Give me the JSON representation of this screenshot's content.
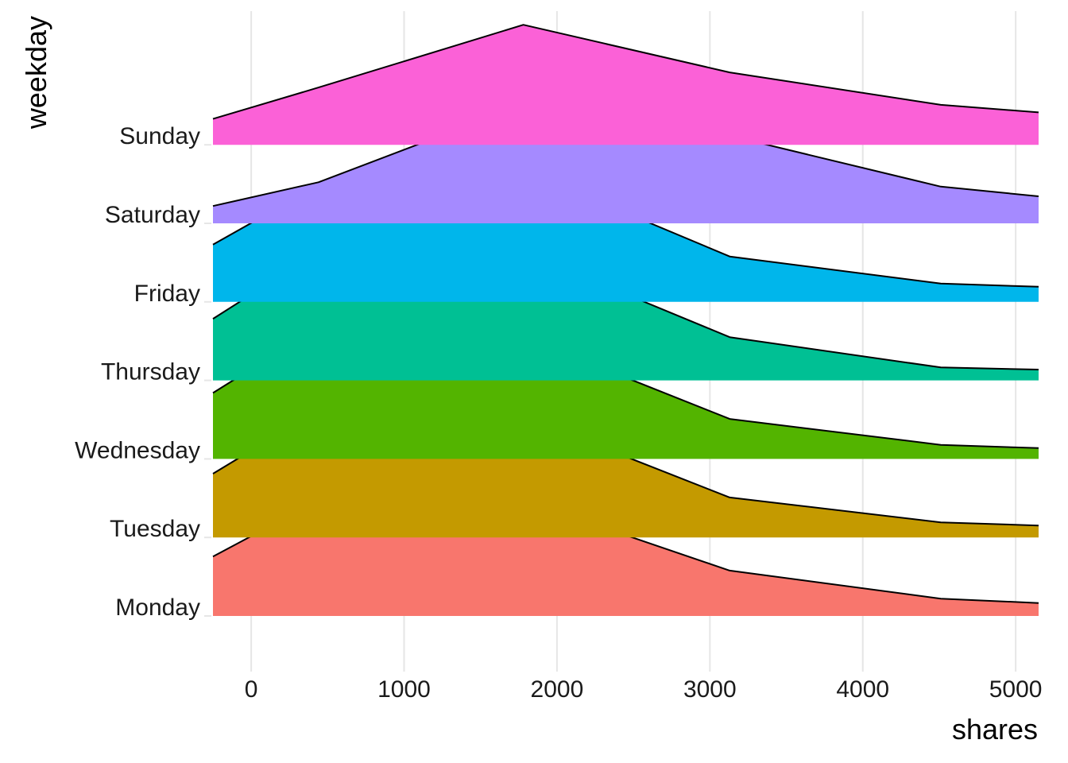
{
  "chart_data": {
    "type": "area",
    "subtype": "ridgeline",
    "xlabel": "shares",
    "ylabel": "weekday",
    "xlim": [
      -250,
      5150
    ],
    "xticks": [
      0,
      1000,
      2000,
      3000,
      4000,
      5000
    ],
    "x": [
      -250,
      440,
      1780,
      3130,
      4510,
      5150
    ],
    "grid": "vertical major gridlines",
    "legend": "none",
    "ridge_height_scale": "relative density, 1.0 = tallest peak",
    "series": [
      {
        "name": "Monday",
        "color": "#F8766D",
        "values": [
          0.55,
          1.07,
          1.07,
          0.42,
          0.16,
          0.12
        ]
      },
      {
        "name": "Tuesday",
        "color": "#C49A00",
        "values": [
          0.59,
          1.18,
          1.12,
          0.37,
          0.14,
          0.11
        ]
      },
      {
        "name": "Wednesday",
        "color": "#53B400",
        "values": [
          0.61,
          1.22,
          1.13,
          0.37,
          0.13,
          0.1
        ]
      },
      {
        "name": "Thursday",
        "color": "#00C094",
        "values": [
          0.57,
          1.19,
          1.19,
          0.4,
          0.12,
          0.1
        ]
      },
      {
        "name": "Friday",
        "color": "#00B6EB",
        "values": [
          0.53,
          1.08,
          1.22,
          0.42,
          0.17,
          0.14
        ]
      },
      {
        "name": "Saturday",
        "color": "#A58AFF",
        "values": [
          0.16,
          0.38,
          1.1,
          0.81,
          0.34,
          0.25
        ]
      },
      {
        "name": "Sunday",
        "color": "#FB61D7",
        "values": [
          0.24,
          0.53,
          1.11,
          0.67,
          0.37,
          0.3
        ]
      }
    ]
  }
}
